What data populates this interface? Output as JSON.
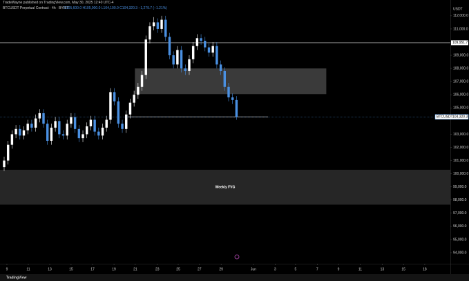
{
  "chart_data": {
    "type": "candlestick",
    "publisher": "TradeWayne published on TradingView.com, May 30, 2025 12:40 UTC-4",
    "title": "BTCUSDT Perpetual Contract · 4h · BYBIT",
    "ohlc_text": "O105,600.0 H105,900.0 L104,100.0 C104,320.3 −1,279.7 (−1.21%)",
    "axis_unit": "USDT",
    "footer": "TradingView",
    "up_color": "#ffffff",
    "down_color": "#4a90e2",
    "open": [
      100500,
      101000,
      102200,
      103000,
      103400,
      102900,
      103300,
      103800,
      103500,
      104200,
      104600,
      103800,
      102500,
      103500,
      104000,
      103000,
      102900,
      103800,
      104300,
      103400,
      102700,
      103000,
      103600,
      104100,
      103200,
      102900,
      103500,
      104100,
      106200,
      105500,
      103800,
      103400,
      104500,
      105400,
      106000,
      106600,
      107500,
      110200,
      111200,
      111500,
      111000,
      111700,
      110400,
      109000,
      108300,
      109400,
      108000,
      107800,
      108700,
      109700,
      110300,
      110100,
      109600,
      109200,
      109700,
      108300,
      107800,
      106600,
      105800,
      105600
    ],
    "high": [
      101300,
      102500,
      103300,
      103700,
      103700,
      103600,
      104100,
      104100,
      104500,
      104900,
      104900,
      104100,
      103800,
      104300,
      104300,
      103300,
      104100,
      104600,
      104600,
      103700,
      103300,
      103900,
      104400,
      104400,
      103500,
      103800,
      104400,
      106500,
      106500,
      105800,
      104100,
      104800,
      105700,
      106300,
      106900,
      107800,
      110500,
      111500,
      111900,
      111800,
      112000,
      112000,
      110700,
      109300,
      109700,
      109700,
      108300,
      109000,
      110000,
      110600,
      110600,
      110400,
      109900,
      110000,
      110000,
      108600,
      108100,
      106900,
      106100,
      105900
    ],
    "low": [
      100200,
      100700,
      101900,
      102700,
      102600,
      102600,
      103000,
      103200,
      103200,
      103900,
      103500,
      102200,
      102200,
      103200,
      102700,
      102600,
      102600,
      103500,
      103100,
      102400,
      102400,
      102700,
      103300,
      102900,
      102600,
      102600,
      103200,
      103800,
      105200,
      103500,
      103100,
      103100,
      104200,
      105100,
      105700,
      106300,
      107200,
      109900,
      110900,
      110700,
      110700,
      110100,
      108700,
      108000,
      108000,
      107700,
      107500,
      107500,
      108400,
      109400,
      109800,
      109300,
      108900,
      108900,
      108000,
      107500,
      106300,
      105500,
      105300,
      104100
    ],
    "close": [
      101000,
      102200,
      103000,
      103400,
      102900,
      103300,
      103800,
      103500,
      104200,
      104600,
      103800,
      102500,
      103500,
      104000,
      103000,
      102900,
      103800,
      104300,
      103400,
      102700,
      103000,
      103600,
      104100,
      103200,
      102900,
      103500,
      104100,
      106200,
      105500,
      103800,
      103400,
      104500,
      105400,
      106000,
      106600,
      107500,
      110200,
      111200,
      111500,
      111000,
      111700,
      110400,
      109000,
      108300,
      109400,
      108000,
      107800,
      108700,
      109700,
      110300,
      110100,
      109600,
      109200,
      109700,
      108300,
      107800,
      106600,
      105800,
      105600,
      104320.3
    ],
    "xlim": [
      -1.05,
      113.3
    ],
    "xticks": [
      {
        "value": 0.7,
        "label": "9"
      },
      {
        "value": 6.14,
        "label": "11"
      },
      {
        "value": 11.58,
        "label": "13"
      },
      {
        "value": 17.0,
        "label": "15"
      },
      {
        "value": 22.46,
        "label": "17"
      },
      {
        "value": 27.9,
        "label": "19"
      },
      {
        "value": 33.3,
        "label": "21"
      },
      {
        "value": 38.9,
        "label": "23"
      },
      {
        "value": 44.2,
        "label": "25"
      },
      {
        "value": 49.6,
        "label": "27"
      },
      {
        "value": 55.1,
        "label": "29"
      },
      {
        "value": 63.3,
        "label": "Jun"
      },
      {
        "value": 68.8,
        "label": "3"
      },
      {
        "value": 74.0,
        "label": "5"
      },
      {
        "value": 79.5,
        "label": "7"
      },
      {
        "value": 84.9,
        "label": "9"
      },
      {
        "value": 90.4,
        "label": "11"
      },
      {
        "value": 96.0,
        "label": "13"
      },
      {
        "value": 101.4,
        "label": "15"
      },
      {
        "value": 106.8,
        "label": "18"
      }
    ],
    "ylim": [
      93160,
      112780
    ],
    "yticks": [
      {
        "value": 112000,
        "label": "112,000.0"
      },
      {
        "value": 111000,
        "label": "111,000.0"
      },
      {
        "value": 109000,
        "label": "109,000.0"
      },
      {
        "value": 108000,
        "label": "108,000.0"
      },
      {
        "value": 107000,
        "label": "107,000.0"
      },
      {
        "value": 106000,
        "label": "106,000.0"
      },
      {
        "value": 105000,
        "label": "105,000.0"
      },
      {
        "value": 103000,
        "label": "103,000.0"
      },
      {
        "value": 102000,
        "label": "102,000.0"
      },
      {
        "value": 101000,
        "label": "101,000.0"
      },
      {
        "value": 100000,
        "label": "100,000.0"
      },
      {
        "value": 99000,
        "label": "99,000.0"
      },
      {
        "value": 98000,
        "label": "98,000.0"
      },
      {
        "value": 97000,
        "label": "97,000.0"
      },
      {
        "value": 96000,
        "label": "96,000.0"
      },
      {
        "value": 95000,
        "label": "95,000.0"
      },
      {
        "value": 94000,
        "label": "94,000.0"
      }
    ],
    "hline": {
      "value": 109951.7,
      "label": "109,951.7"
    },
    "last_price": {
      "name": "BTCUSDT",
      "value": 104320.3,
      "label": "104,320.3"
    },
    "segment": {
      "value": 104320.3,
      "x": [
        31.4,
        67.0
      ]
    },
    "boxes": [
      {
        "top": 108000,
        "bottom": 106050,
        "x": [
          33.2,
          81.8
        ]
      },
      {
        "top": 100300,
        "bottom": 97650,
        "x": [
          -1.05,
          113.3
        ],
        "label": "Weekly FVG"
      }
    ]
  }
}
